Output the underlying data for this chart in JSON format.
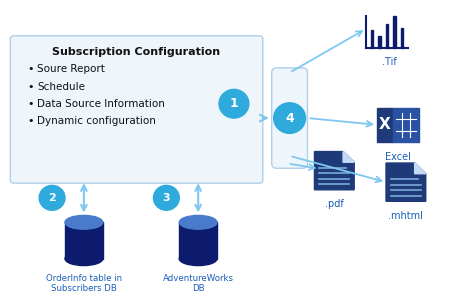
{
  "bg_color": "#ffffff",
  "box_color": "#eef5fb",
  "box_border": "#b0cfe8",
  "circle_color": "#2eaadc",
  "circle_text_color": "#ffffff",
  "db_dark": "#0d1b6e",
  "db_top": "#4a7acc",
  "arrow_color": "#7ec8f0",
  "label_color": "#1a5eb8",
  "title": "Subscription Configuration",
  "bullets": [
    "Soure Report",
    "Schedule",
    "Data Source Information",
    "Dynamic configuration"
  ],
  "db_labels": [
    "OrderInfo table in\nSubscribers DB",
    "AdventureWorks\nDB"
  ],
  "output_labels": [
    ".Tif",
    "Excel",
    ".mhtml",
    ".pdf"
  ],
  "tif_bars": [
    0.55,
    0.38,
    0.75,
    1.0,
    0.62
  ],
  "excel_dark": "#1e3a78",
  "excel_mid": "#2952a3",
  "doc_dark": "#1e3a78",
  "doc_fold": "#c5daf5",
  "doc_line": "#7aaad8"
}
